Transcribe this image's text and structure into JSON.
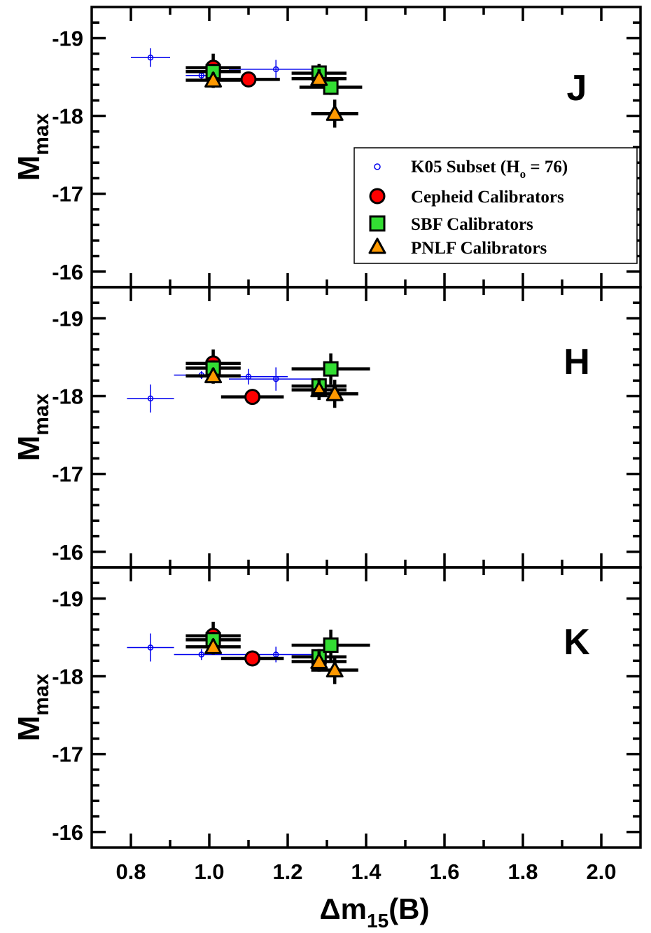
{
  "colors": {
    "k05": "#0000ee",
    "cepheid": "#ff0000",
    "sbf": "#33dd33",
    "pnlf": "#ff9900",
    "axis": "#000000"
  },
  "xlabel": "Δm₁₅(B)",
  "xlabel_parts": {
    "main": "Δm",
    "sub": "15",
    "tail": "(B)"
  },
  "ylabel_parts": {
    "main": "M",
    "sub": "max"
  },
  "legend": {
    "k05": "K05 Subset (H",
    "k05_sub": "o",
    "k05_tail": " = 76)",
    "cepheid": "Cepheid Calibrators",
    "sbf": "SBF Calibrators",
    "pnlf": "PNLF Calibrators"
  },
  "x_tick_labels": [
    "0.8",
    "1.0",
    "1.2",
    "1.4",
    "1.6",
    "1.8",
    "2.0"
  ],
  "y_tick_labels": [
    "-19",
    "-18",
    "-17",
    "-16"
  ],
  "chart_data": [
    {
      "type": "scatter",
      "band": "J",
      "xlim": [
        0.7,
        2.1
      ],
      "ylim": [
        -15.8,
        -19.4
      ],
      "y_inverted": true,
      "grid": false,
      "legend_position": "right",
      "series": [
        {
          "name": "K05 Subset (Ho = 76)",
          "marker": "open-circle",
          "points": [
            {
              "x": 0.85,
              "y": -18.75,
              "xerr": 0.05,
              "yerr": 0.12
            },
            {
              "x": 0.98,
              "y": -18.52,
              "xerr": 0.04,
              "yerr": 0.06
            },
            {
              "x": 1.17,
              "y": -18.6,
              "xerr": 0.12,
              "yerr": 0.12
            }
          ]
        },
        {
          "name": "Cepheid Calibrators",
          "marker": "circle",
          "points": [
            {
              "x": 1.01,
              "y": -18.62,
              "xerr": 0.07,
              "yerr": 0.18
            },
            {
              "x": 1.1,
              "y": -18.47,
              "xerr": 0.08,
              "yerr": 0.05
            }
          ]
        },
        {
          "name": "SBF Calibrators",
          "marker": "square",
          "points": [
            {
              "x": 1.01,
              "y": -18.57,
              "xerr": 0.07,
              "yerr": 0.1
            },
            {
              "x": 1.28,
              "y": -18.55,
              "xerr": 0.07,
              "yerr": 0.12
            },
            {
              "x": 1.31,
              "y": -18.37,
              "xerr": 0.08,
              "yerr": 0.1
            }
          ]
        },
        {
          "name": "PNLF Calibrators",
          "marker": "triangle",
          "points": [
            {
              "x": 1.01,
              "y": -18.46,
              "xerr": 0.07,
              "yerr": 0.1
            },
            {
              "x": 1.28,
              "y": -18.48,
              "xerr": 0.07,
              "yerr": 0.12
            },
            {
              "x": 1.32,
              "y": -18.03,
              "xerr": 0.06,
              "yerr": 0.18
            }
          ]
        }
      ]
    },
    {
      "type": "scatter",
      "band": "H",
      "xlim": [
        0.7,
        2.1
      ],
      "ylim": [
        -15.8,
        -19.4
      ],
      "y_inverted": true,
      "grid": false,
      "series": [
        {
          "name": "K05 Subset (Ho = 76)",
          "marker": "open-circle",
          "points": [
            {
              "x": 0.85,
              "y": -17.97,
              "xerr": 0.06,
              "yerr": 0.18
            },
            {
              "x": 0.98,
              "y": -18.27,
              "xerr": 0.07,
              "yerr": 0.05
            },
            {
              "x": 1.1,
              "y": -18.25,
              "xerr": 0.1,
              "yerr": 0.1
            },
            {
              "x": 1.17,
              "y": -18.22,
              "xerr": 0.12,
              "yerr": 0.15
            }
          ]
        },
        {
          "name": "Cepheid Calibrators",
          "marker": "circle",
          "points": [
            {
              "x": 1.01,
              "y": -18.42,
              "xerr": 0.07,
              "yerr": 0.18
            },
            {
              "x": 1.11,
              "y": -17.99,
              "xerr": 0.08,
              "yerr": 0.05
            }
          ]
        },
        {
          "name": "SBF Calibrators",
          "marker": "square",
          "points": [
            {
              "x": 1.01,
              "y": -18.36,
              "xerr": 0.07,
              "yerr": 0.1
            },
            {
              "x": 1.28,
              "y": -18.13,
              "xerr": 0.07,
              "yerr": 0.1
            },
            {
              "x": 1.31,
              "y": -18.35,
              "xerr": 0.1,
              "yerr": 0.2
            }
          ]
        },
        {
          "name": "PNLF Calibrators",
          "marker": "triangle",
          "points": [
            {
              "x": 1.01,
              "y": -18.26,
              "xerr": 0.07,
              "yerr": 0.1
            },
            {
              "x": 1.28,
              "y": -18.08,
              "xerr": 0.07,
              "yerr": 0.13
            },
            {
              "x": 1.32,
              "y": -18.03,
              "xerr": 0.06,
              "yerr": 0.18
            }
          ]
        }
      ]
    },
    {
      "type": "scatter",
      "band": "K",
      "xlim": [
        0.7,
        2.1
      ],
      "ylim": [
        -15.8,
        -19.4
      ],
      "y_inverted": true,
      "grid": false,
      "series": [
        {
          "name": "K05 Subset (Ho = 76)",
          "marker": "open-circle",
          "points": [
            {
              "x": 0.85,
              "y": -18.37,
              "xerr": 0.06,
              "yerr": 0.18
            },
            {
              "x": 0.98,
              "y": -18.28,
              "xerr": 0.07,
              "yerr": 0.07
            },
            {
              "x": 1.17,
              "y": -18.28,
              "xerr": 0.12,
              "yerr": 0.1
            }
          ]
        },
        {
          "name": "Cepheid Calibrators",
          "marker": "circle",
          "points": [
            {
              "x": 1.01,
              "y": -18.52,
              "xerr": 0.07,
              "yerr": 0.18
            },
            {
              "x": 1.11,
              "y": -18.23,
              "xerr": 0.08,
              "yerr": 0.05
            }
          ]
        },
        {
          "name": "SBF Calibrators",
          "marker": "square",
          "points": [
            {
              "x": 1.01,
              "y": -18.47,
              "xerr": 0.07,
              "yerr": 0.1
            },
            {
              "x": 1.28,
              "y": -18.25,
              "xerr": 0.07,
              "yerr": 0.1
            },
            {
              "x": 1.31,
              "y": -18.4,
              "xerr": 0.1,
              "yerr": 0.2
            }
          ]
        },
        {
          "name": "PNLF Calibrators",
          "marker": "triangle",
          "points": [
            {
              "x": 1.01,
              "y": -18.38,
              "xerr": 0.07,
              "yerr": 0.1
            },
            {
              "x": 1.28,
              "y": -18.19,
              "xerr": 0.07,
              "yerr": 0.13
            },
            {
              "x": 1.32,
              "y": -18.08,
              "xerr": 0.06,
              "yerr": 0.18
            }
          ]
        }
      ]
    }
  ]
}
